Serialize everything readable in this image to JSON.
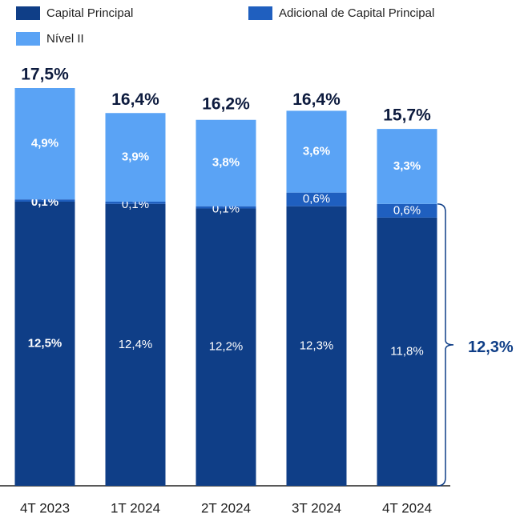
{
  "chart_data": {
    "type": "stacked_bar",
    "categories": [
      "4T 2023",
      "1T 2024",
      "2T 2024",
      "3T 2024",
      "4T 2024"
    ],
    "series": [
      {
        "name": "Capital Principal",
        "color": "#0f3e87",
        "values": [
          12.5,
          12.4,
          12.2,
          12.3,
          11.8
        ],
        "value_labels": [
          "12,5%",
          "12,4%",
          "12,2%",
          "12,3%",
          "11,8%"
        ]
      },
      {
        "name": "Adicional de Capital Principal",
        "color": "#1f5fbf",
        "values": [
          0.1,
          0.1,
          0.1,
          0.6,
          0.6
        ],
        "value_labels": [
          "0,1%",
          "0,1%",
          "0,1%",
          "0,6%",
          "0,6%"
        ]
      },
      {
        "name": "Nível II",
        "color": "#5aa3f5",
        "values": [
          4.9,
          3.9,
          3.8,
          3.6,
          3.3
        ],
        "value_labels": [
          "4,9%",
          "3,9%",
          "3,8%",
          "3,6%",
          "3,3%"
        ]
      }
    ],
    "totals": [
      17.5,
      16.4,
      16.2,
      16.4,
      15.7
    ],
    "total_labels": [
      "17,5%",
      "16,4%",
      "16,2%",
      "16,4%",
      "15,7%"
    ],
    "annotation": "12,3%"
  }
}
